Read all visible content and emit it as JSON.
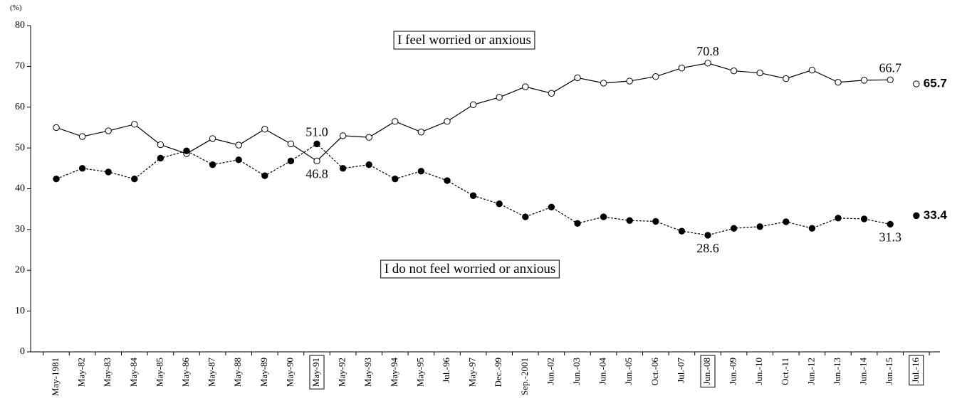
{
  "chart_data": {
    "type": "line",
    "y_label": "(%)",
    "categories": [
      "May-1981",
      "May-82",
      "May-83",
      "May-84",
      "May-85",
      "May-86",
      "May-87",
      "May-88",
      "May-89",
      "May-90",
      "May-91",
      "May-92",
      "May-93",
      "May-94",
      "May-95",
      "Jul.-96",
      "May-97",
      "Dec.-99",
      "Sep.-2001",
      "Jun.-02",
      "Jun.-03",
      "Jun.-04",
      "Jun.-05",
      "Oct.-06",
      "Jul.-07",
      "Jun.-08",
      "Jun.-09",
      "Jun.-10",
      "Oct.-11",
      "Jun.-12",
      "Jun.-13",
      "Jun.-14",
      "Jun.-15",
      "Jul.-16"
    ],
    "highlighted_categories": [
      "May-91",
      "Jun.-08",
      "Jul.-16"
    ],
    "series": [
      {
        "name": "I feel worried or anxious",
        "color": "#000000",
        "marker": "open",
        "dash": "solid",
        "values": [
          55.0,
          52.8,
          54.2,
          55.8,
          50.8,
          48.6,
          52.3,
          50.7,
          54.6,
          51.0,
          46.8,
          53.0,
          52.6,
          56.5,
          53.9,
          56.5,
          60.6,
          62.4,
          65.0,
          63.4,
          67.2,
          65.9,
          66.4,
          67.5,
          69.6,
          70.8,
          68.9,
          68.4,
          67.0,
          69.1,
          66.1,
          66.6,
          66.7,
          65.7
        ],
        "value_labels": [
          null,
          null,
          null,
          null,
          null,
          null,
          null,
          null,
          null,
          null,
          "46.8",
          null,
          null,
          null,
          null,
          null,
          null,
          null,
          null,
          null,
          null,
          null,
          null,
          null,
          null,
          "70.8",
          null,
          null,
          null,
          null,
          null,
          null,
          "66.7",
          "65.7"
        ]
      },
      {
        "name": "I do not feel worried or anxious",
        "color": "#000000",
        "marker": "filled",
        "dash": "dashed",
        "values": [
          42.4,
          45.0,
          44.1,
          42.4,
          47.5,
          49.3,
          45.9,
          47.1,
          43.2,
          46.8,
          51.0,
          45.0,
          45.9,
          42.4,
          44.3,
          42.0,
          38.3,
          36.3,
          33.1,
          35.5,
          31.5,
          33.1,
          32.2,
          32.0,
          29.6,
          28.6,
          30.3,
          30.7,
          31.9,
          30.3,
          32.8,
          32.6,
          31.3,
          33.4
        ],
        "value_labels": [
          null,
          null,
          null,
          null,
          null,
          null,
          null,
          null,
          null,
          null,
          "51.0",
          null,
          null,
          null,
          null,
          null,
          null,
          null,
          null,
          null,
          null,
          null,
          null,
          null,
          null,
          "28.6",
          null,
          null,
          null,
          null,
          null,
          null,
          "31.3",
          "33.4"
        ]
      }
    ],
    "ylim": [
      0,
      80
    ],
    "yticks": [
      0,
      10,
      20,
      30,
      40,
      50,
      60,
      70,
      80
    ],
    "grid": false
  }
}
